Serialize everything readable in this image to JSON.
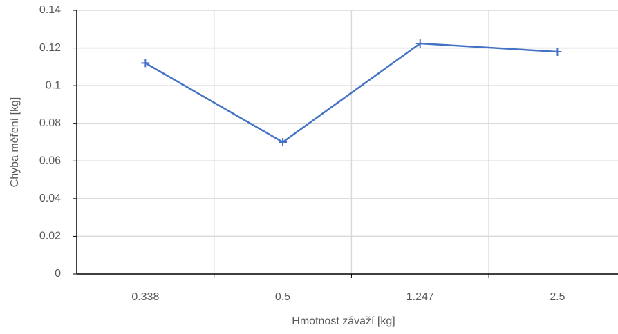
{
  "chart_data": {
    "type": "line",
    "x_label": "Hmotnost závaží [kg]",
    "y_label": "Chyba měření [kg]",
    "categories": [
      "0.338",
      "0.5",
      "1.247",
      "2.5"
    ],
    "series": [
      {
        "name": "Chyba měření",
        "color": "#4472c4",
        "values": [
          0.112,
          0.07,
          0.1224,
          0.118
        ]
      }
    ],
    "ylim": [
      0,
      0.14
    ],
    "yticks": [
      0,
      0.02,
      0.04,
      0.06,
      0.08,
      0.1,
      0.12,
      0.14
    ],
    "grid": true,
    "legend": false
  }
}
